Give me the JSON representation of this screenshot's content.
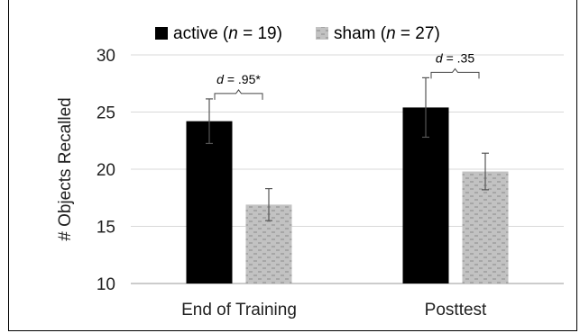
{
  "chart_data": {
    "type": "bar",
    "categories": [
      "End of Training",
      "Posttest"
    ],
    "series": [
      {
        "key": "active",
        "legend_prefix": "active (",
        "legend_n_symbol": "n",
        "legend_n_suffix": " = 19)",
        "values": [
          24.2,
          25.4
        ],
        "error": [
          1.95,
          2.6
        ],
        "color": "#000000",
        "pattern": "solid"
      },
      {
        "key": "sham",
        "legend_prefix": "sham (",
        "legend_n_symbol": "n",
        "legend_n_suffix": " = 27)",
        "values": [
          16.9,
          19.8
        ],
        "error": [
          1.4,
          1.6
        ],
        "color": "#bdbdbd",
        "pattern": "dashed-gray"
      }
    ],
    "ylabel": "# Objects Recalled",
    "ylim": [
      10,
      30
    ],
    "yticks": [
      "10",
      "15",
      "20",
      "25",
      "30"
    ],
    "grid": true,
    "legend_position": "top",
    "annotations": [
      {
        "category_index": 0,
        "d_symbol": "d",
        "d_value": " = .95*"
      },
      {
        "category_index": 1,
        "d_symbol": "d",
        "d_value": " = .35"
      }
    ]
  }
}
